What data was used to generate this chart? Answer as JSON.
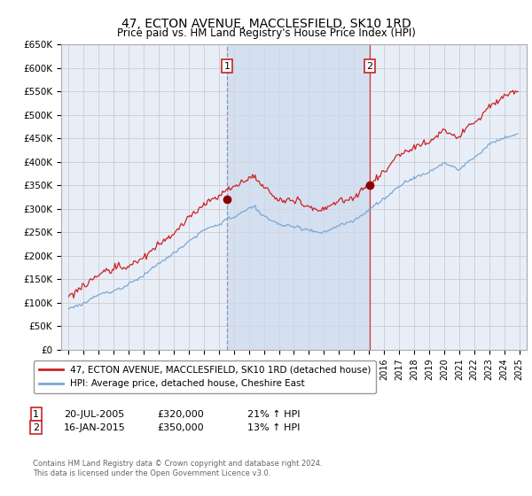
{
  "title": "47, ECTON AVENUE, MACCLESFIELD, SK10 1RD",
  "subtitle": "Price paid vs. HM Land Registry's House Price Index (HPI)",
  "ylabel_ticks": [
    "£0",
    "£50K",
    "£100K",
    "£150K",
    "£200K",
    "£250K",
    "£300K",
    "£350K",
    "£400K",
    "£450K",
    "£500K",
    "£550K",
    "£600K",
    "£650K"
  ],
  "ylim": [
    0,
    650000
  ],
  "ytick_values": [
    0,
    50000,
    100000,
    150000,
    200000,
    250000,
    300000,
    350000,
    400000,
    450000,
    500000,
    550000,
    600000,
    650000
  ],
  "hpi_color": "#7aa8d4",
  "price_color": "#cc2222",
  "sale1_x": 2005.55,
  "sale1_y": 320000,
  "sale2_x": 2015.04,
  "sale2_y": 350000,
  "legend_line1": "47, ECTON AVENUE, MACCLESFIELD, SK10 1RD (detached house)",
  "legend_line2": "HPI: Average price, detached house, Cheshire East",
  "footer": "Contains HM Land Registry data © Crown copyright and database right 2024.\nThis data is licensed under the Open Government Licence v3.0.",
  "grid_color": "#cccccc",
  "bg_color": "#e8eef8",
  "shade_color": "#ccdaee",
  "xmin": 1994.5,
  "xmax": 2025.5
}
